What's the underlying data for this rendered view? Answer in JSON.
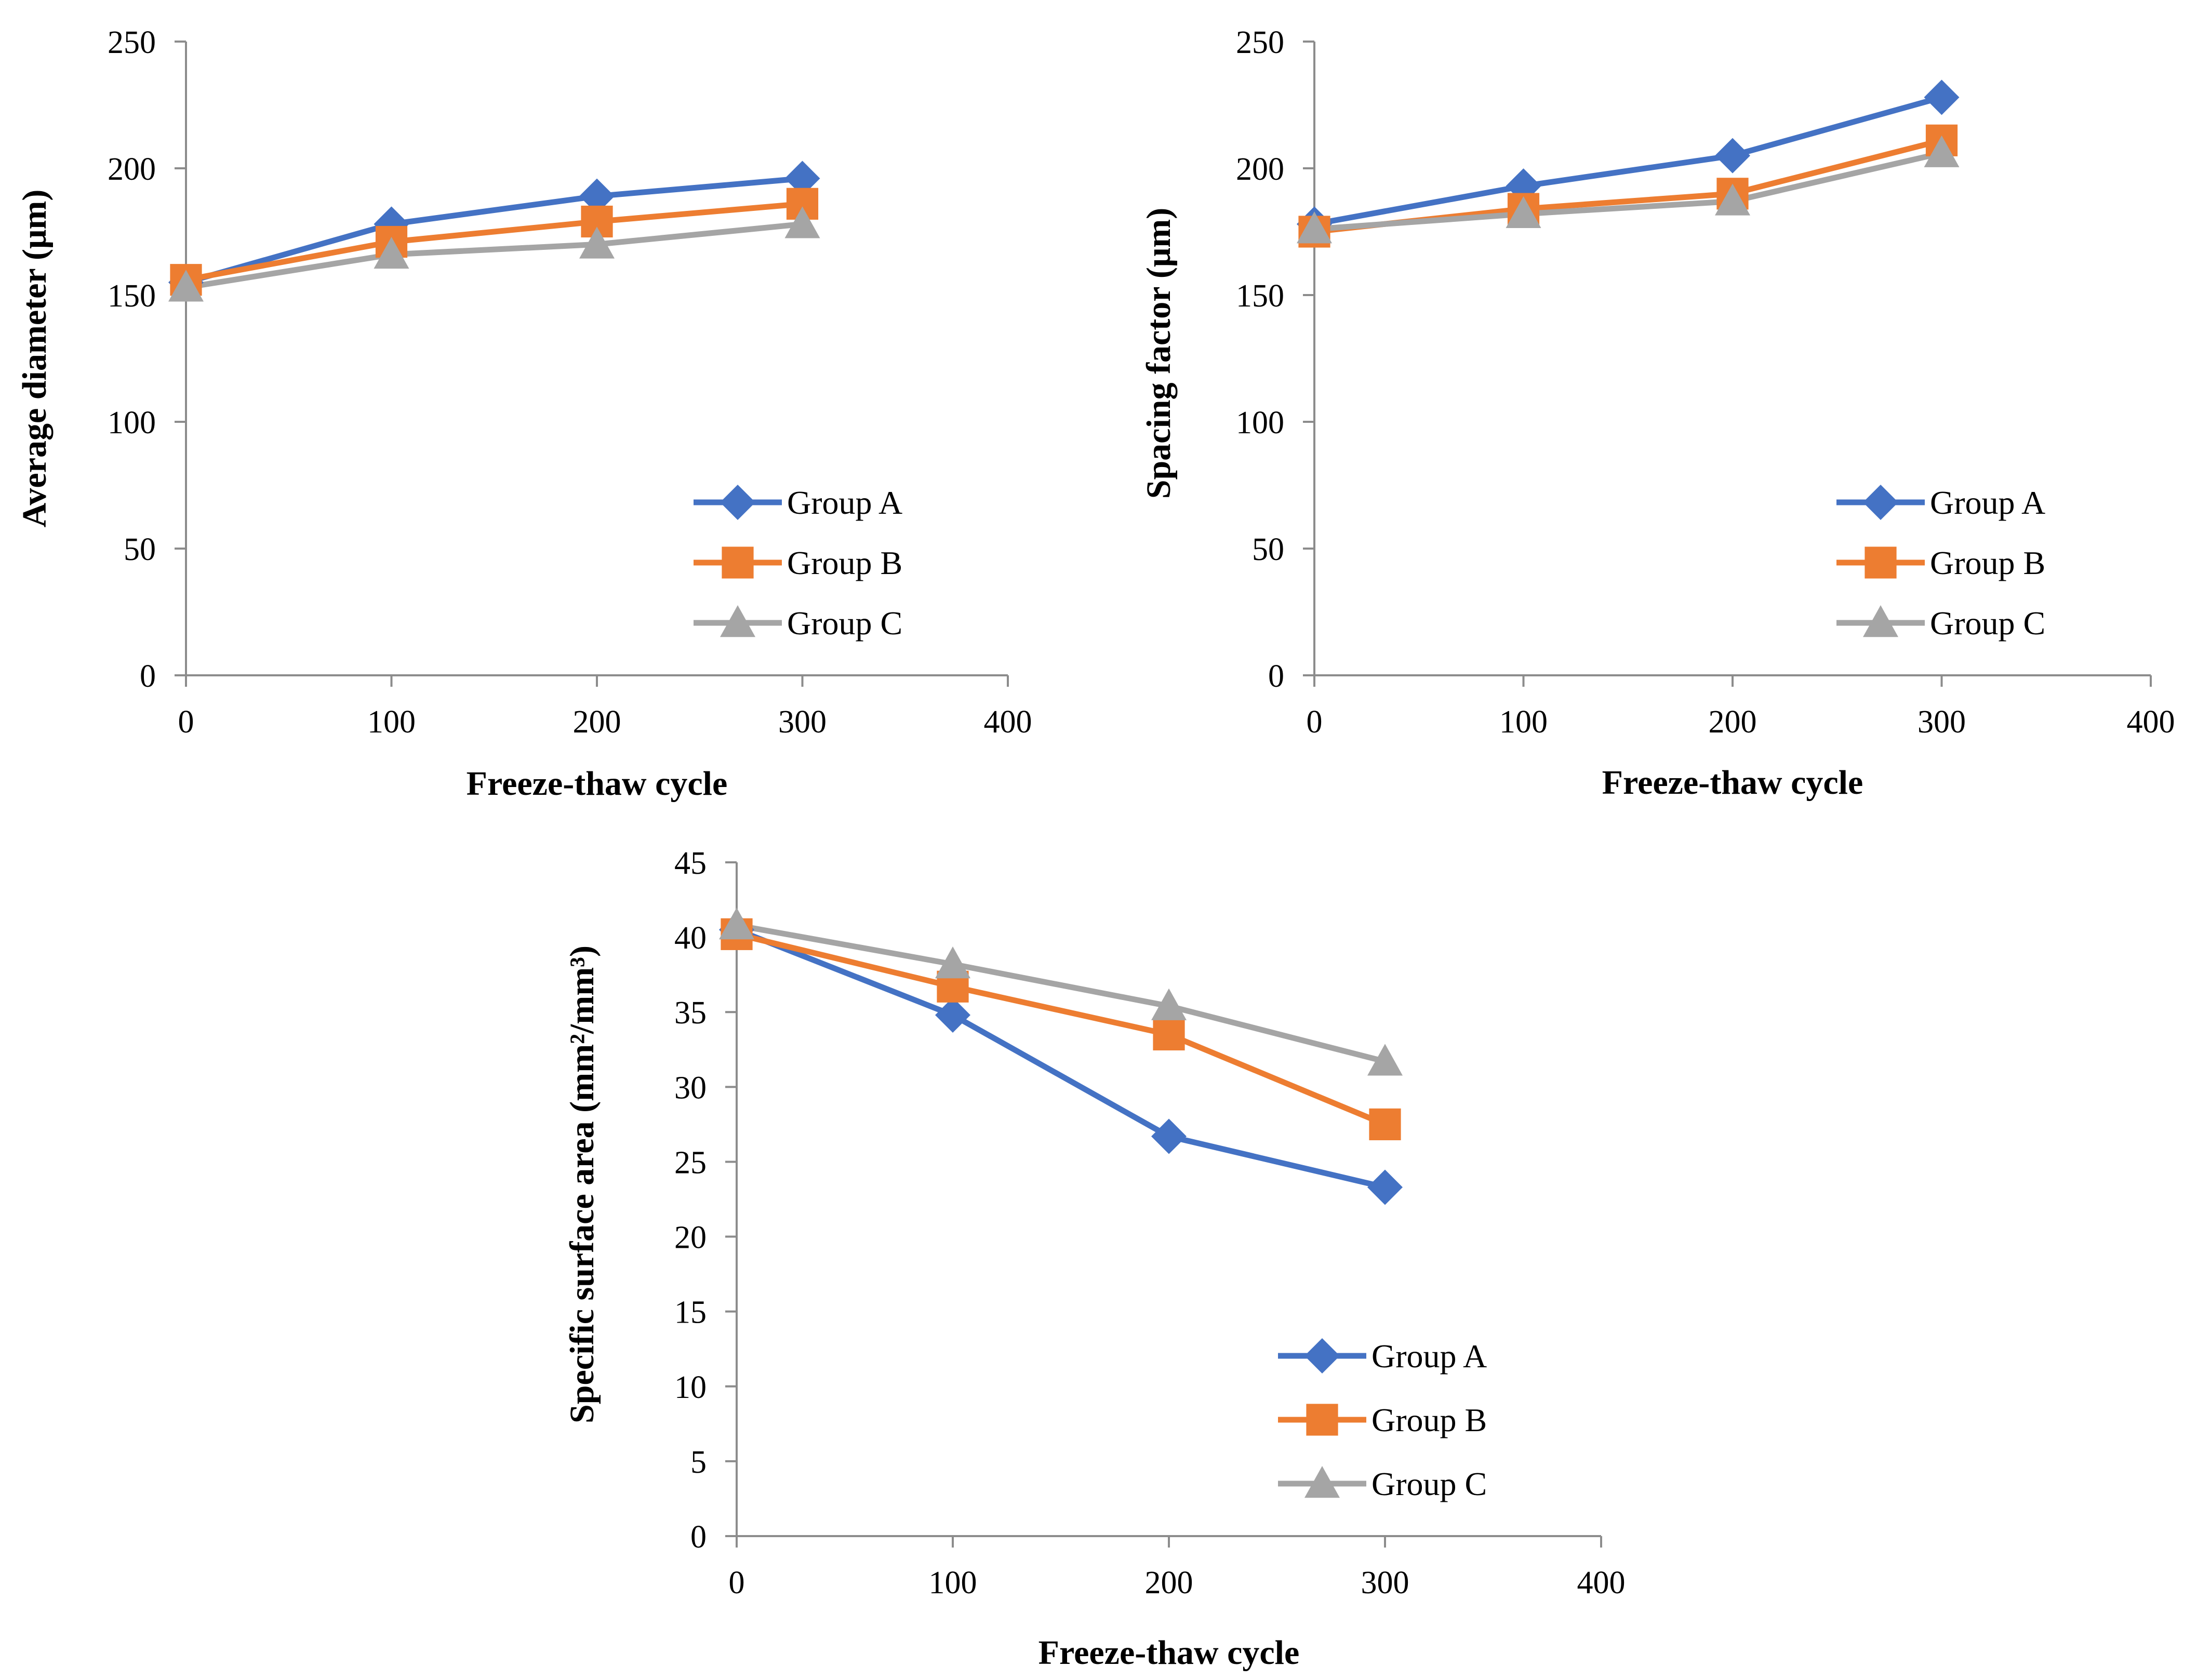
{
  "chart_data": [
    {
      "type": "line",
      "title": "",
      "xlabel": "Freeze-thaw cycle",
      "ylabel": "Average  diameter (μm)",
      "xlim": [
        0,
        400
      ],
      "ylim": [
        0,
        250
      ],
      "xticks": [
        0,
        100,
        200,
        300,
        400
      ],
      "yticks": [
        0,
        50,
        100,
        150,
        200,
        250
      ],
      "grid": false,
      "legend_position": "bottom-right",
      "x": [
        0,
        100,
        200,
        300
      ],
      "series": [
        {
          "name": "Group A",
          "values": [
            155,
            178,
            189,
            196
          ],
          "color": "#4472c4",
          "marker": "diamond"
        },
        {
          "name": "Group B",
          "values": [
            156,
            171,
            179,
            186
          ],
          "color": "#ed7d31",
          "marker": "square"
        },
        {
          "name": "Group C",
          "values": [
            153,
            166,
            170,
            178
          ],
          "color": "#a5a5a5",
          "marker": "triangle"
        }
      ]
    },
    {
      "type": "line",
      "title": "",
      "xlabel": "Freeze-thaw cycle",
      "ylabel": "Spacing factor (μm)",
      "xlim": [
        0,
        400
      ],
      "ylim": [
        0,
        250
      ],
      "xticks": [
        0,
        100,
        200,
        300,
        400
      ],
      "yticks": [
        0,
        50,
        100,
        150,
        200,
        250
      ],
      "grid": false,
      "legend_position": "bottom-right",
      "x": [
        0,
        100,
        200,
        300
      ],
      "series": [
        {
          "name": "Group A",
          "values": [
            178,
            193,
            205,
            228
          ],
          "color": "#4472c4",
          "marker": "diamond"
        },
        {
          "name": "Group B",
          "values": [
            175,
            184,
            190,
            211
          ],
          "color": "#ed7d31",
          "marker": "square"
        },
        {
          "name": "Group C",
          "values": [
            176,
            182,
            187,
            206
          ],
          "color": "#a5a5a5",
          "marker": "triangle"
        }
      ]
    },
    {
      "type": "line",
      "title": "",
      "xlabel": "Freeze-thaw cycle",
      "ylabel": "Specific surface area (mm²/mm³)",
      "xlim": [
        0,
        400
      ],
      "ylim": [
        0,
        45
      ],
      "xticks": [
        0,
        100,
        200,
        300,
        400
      ],
      "yticks": [
        0,
        5,
        10,
        15,
        20,
        25,
        30,
        35,
        40,
        45
      ],
      "grid": false,
      "legend_position": "bottom-right",
      "x": [
        0,
        100,
        200,
        300
      ],
      "series": [
        {
          "name": "Group A",
          "values": [
            40.5,
            34.8,
            26.7,
            23.3
          ],
          "color": "#4472c4",
          "marker": "diamond"
        },
        {
          "name": "Group B",
          "values": [
            40.2,
            36.7,
            33.5,
            27.5
          ],
          "color": "#ed7d31",
          "marker": "square"
        },
        {
          "name": "Group C",
          "values": [
            40.8,
            38.2,
            35.4,
            31.7
          ],
          "color": "#a5a5a5",
          "marker": "triangle"
        }
      ]
    }
  ]
}
